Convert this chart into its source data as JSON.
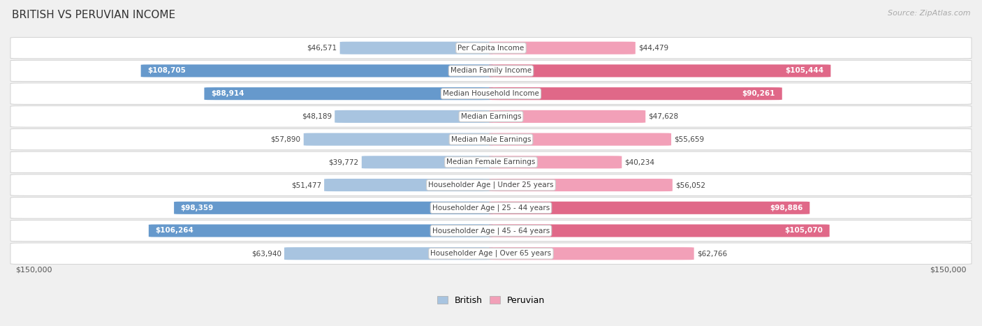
{
  "title": "BRITISH VS PERUVIAN INCOME",
  "source": "Source: ZipAtlas.com",
  "categories": [
    "Per Capita Income",
    "Median Family Income",
    "Median Household Income",
    "Median Earnings",
    "Median Male Earnings",
    "Median Female Earnings",
    "Householder Age | Under 25 years",
    "Householder Age | 25 - 44 years",
    "Householder Age | 45 - 64 years",
    "Householder Age | Over 65 years"
  ],
  "british_values": [
    46571,
    108705,
    88914,
    48189,
    57890,
    39772,
    51477,
    98359,
    106264,
    63940
  ],
  "peruvian_values": [
    44479,
    105444,
    90261,
    47628,
    55659,
    40234,
    56052,
    98886,
    105070,
    62766
  ],
  "british_labels": [
    "$46,571",
    "$108,705",
    "$88,914",
    "$48,189",
    "$57,890",
    "$39,772",
    "$51,477",
    "$98,359",
    "$106,264",
    "$63,940"
  ],
  "peruvian_labels": [
    "$44,479",
    "$105,444",
    "$90,261",
    "$47,628",
    "$55,659",
    "$40,234",
    "$56,052",
    "$98,886",
    "$105,070",
    "$62,766"
  ],
  "max_value": 150000,
  "british_color_light": "#a8c4e0",
  "british_color_dark": "#6699cc",
  "peruvian_color_light": "#f2a0b8",
  "peruvian_color_dark": "#e06888",
  "british_threshold": 80000,
  "peruvian_threshold": 80000,
  "background_color": "#f0f0f0",
  "axis_label_left": "$150,000",
  "axis_label_right": "$150,000",
  "legend_british": "British",
  "legend_peruvian": "Peruvian",
  "figsize": [
    14.06,
    4.67
  ],
  "dpi": 100
}
